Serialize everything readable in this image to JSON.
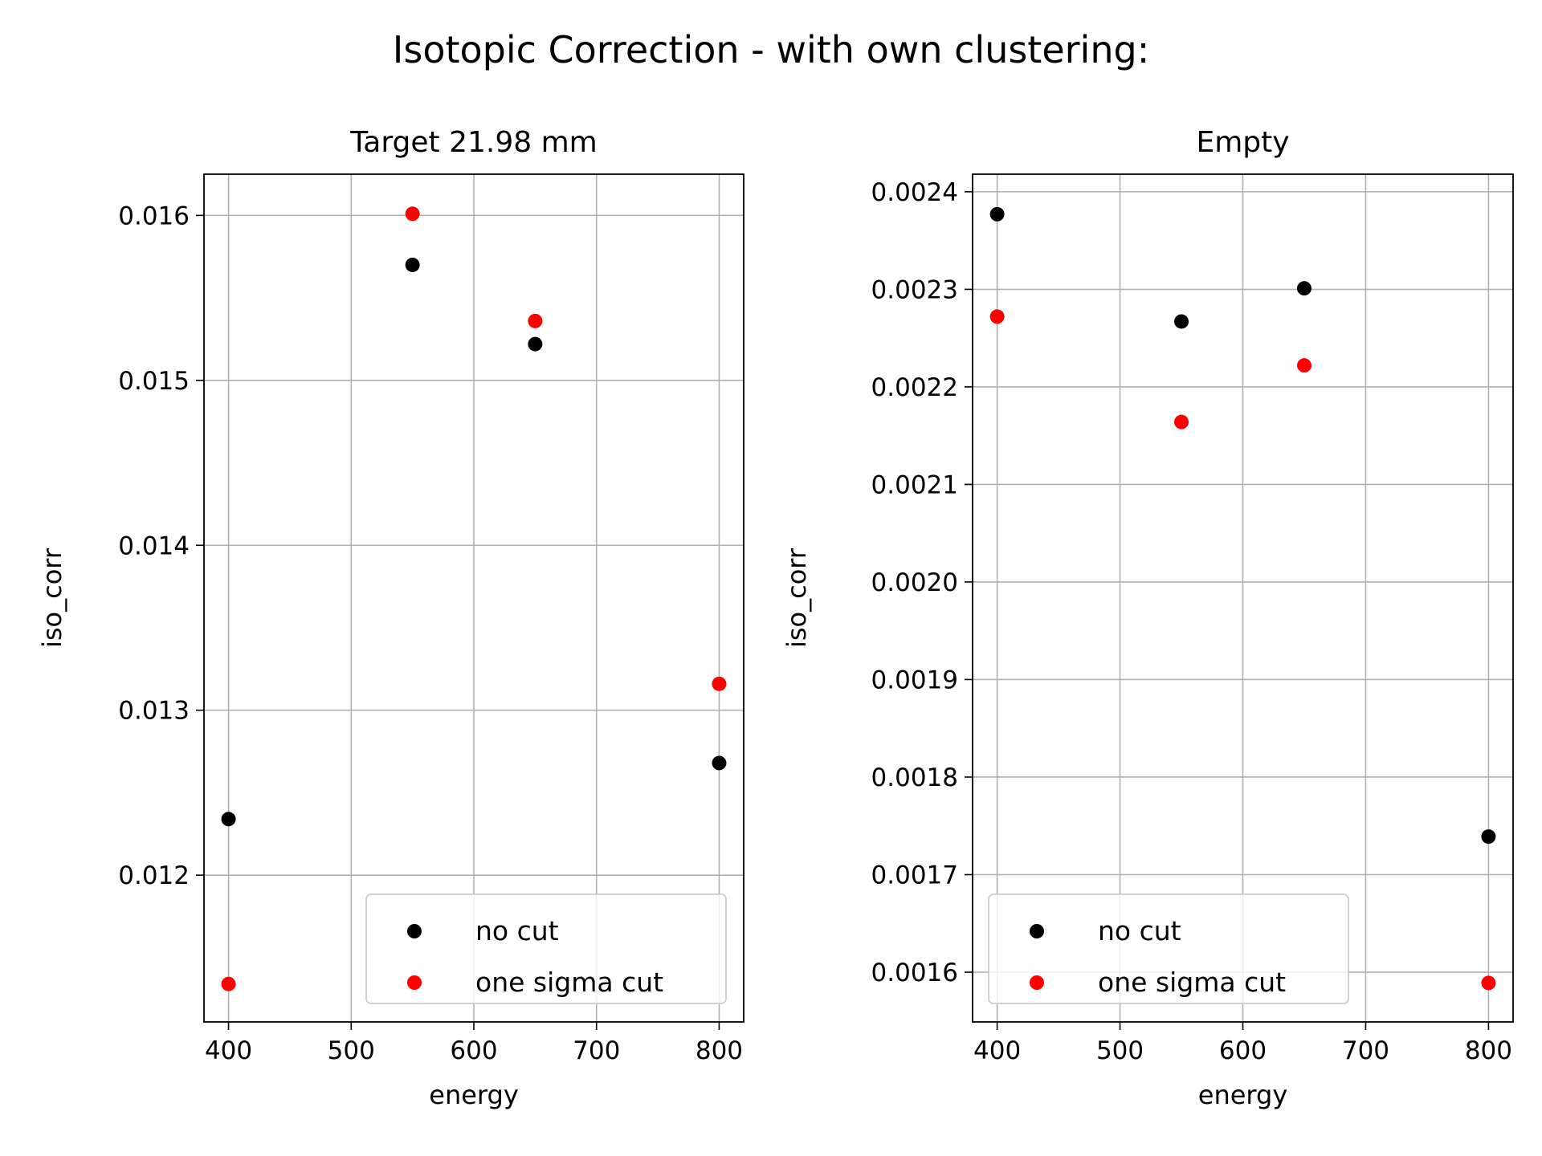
{
  "figure": {
    "suptitle": "Isotopic Correction - with own clustering:"
  },
  "chart_data": [
    {
      "type": "scatter",
      "title": "Target 21.98 mm",
      "xlabel": "energy",
      "ylabel": "iso_corr",
      "xlim": [
        380,
        820
      ],
      "ylim": [
        0.01111,
        0.01625
      ],
      "xticks": [
        400,
        500,
        600,
        700,
        800
      ],
      "xtick_labels": [
        "400",
        "500",
        "600",
        "700",
        "800"
      ],
      "yticks": [
        0.012,
        0.013,
        0.014,
        0.015,
        0.016
      ],
      "ytick_labels": [
        "0.012",
        "0.013",
        "0.014",
        "0.015",
        "0.016"
      ],
      "grid": true,
      "legend_position": "lower right",
      "series": [
        {
          "name": "no cut",
          "color": "#000000",
          "x": [
            400,
            550,
            650,
            800
          ],
          "y": [
            0.01234,
            0.0157,
            0.01522,
            0.01268
          ]
        },
        {
          "name": "one sigma cut",
          "color": "#ff0000",
          "x": [
            400,
            550,
            650,
            800
          ],
          "y": [
            0.01134,
            0.01601,
            0.01536,
            0.01316
          ]
        }
      ]
    },
    {
      "type": "scatter",
      "title": "Empty",
      "xlabel": "energy",
      "ylabel": "iso_corr",
      "xlim": [
        380,
        820
      ],
      "ylim": [
        0.001549,
        0.002418
      ],
      "xticks": [
        400,
        500,
        600,
        700,
        800
      ],
      "xtick_labels": [
        "400",
        "500",
        "600",
        "700",
        "800"
      ],
      "yticks": [
        0.0016,
        0.0017,
        0.0018,
        0.0019,
        0.002,
        0.0021,
        0.0022,
        0.0023,
        0.0024
      ],
      "ytick_labels": [
        "0.0016",
        "0.0017",
        "0.0018",
        "0.0019",
        "0.0020",
        "0.0021",
        "0.0022",
        "0.0023",
        "0.0024"
      ],
      "grid": true,
      "legend_position": "lower left",
      "series": [
        {
          "name": "no cut",
          "color": "#000000",
          "x": [
            400,
            550,
            650,
            800
          ],
          "y": [
            0.002377,
            0.002267,
            0.002301,
            0.001739
          ]
        },
        {
          "name": "one sigma cut",
          "color": "#ff0000",
          "x": [
            400,
            550,
            650,
            800
          ],
          "y": [
            0.002272,
            0.002164,
            0.002222,
            0.001589
          ]
        }
      ]
    }
  ]
}
